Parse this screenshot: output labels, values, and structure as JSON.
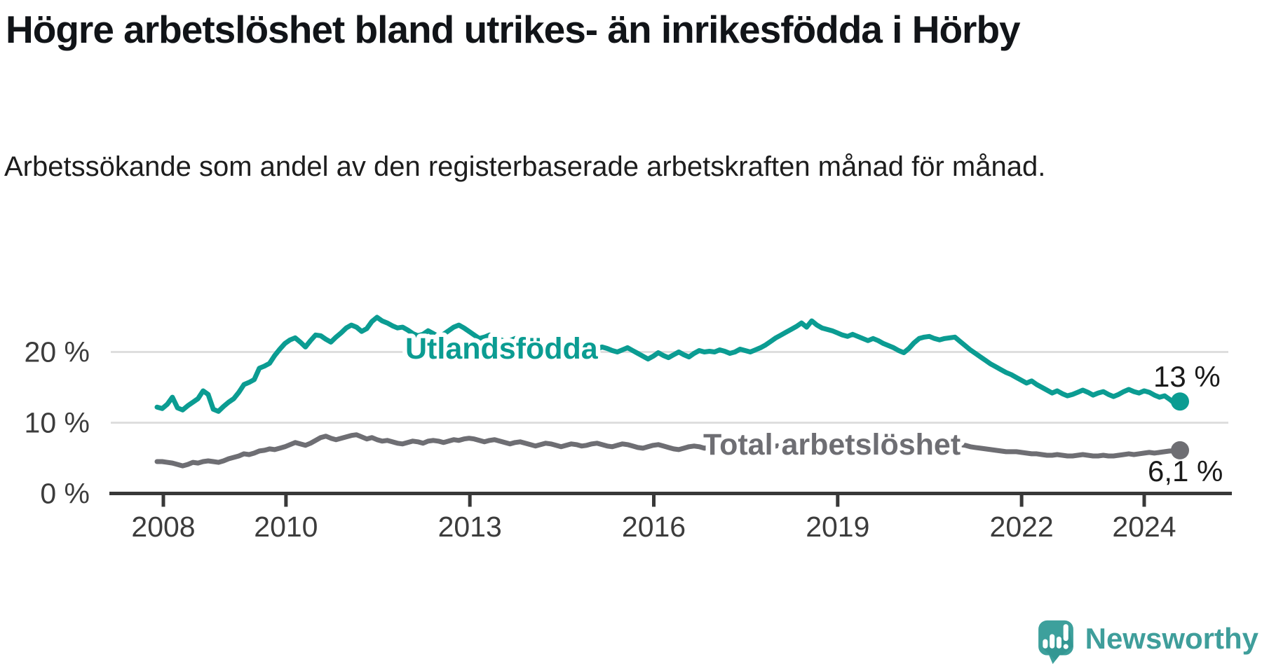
{
  "title": "Högre arbetslöshet bland utrikes- än inrikesfödda i Hörby",
  "subtitle": "Arbetssökande som andel av den registerbaserade arbetskraften månad för månad.",
  "branding": {
    "logo_text": "Newsworthy"
  },
  "colors": {
    "teal": "#0b9c92",
    "gray": "#6e6e73",
    "grid": "#dedede",
    "axis": "#383838",
    "tick_label": "#3c3c3c",
    "value_label": "#1a1a1a",
    "logo_teal": "#3f9e9b",
    "logo_icon": "#3da09c"
  },
  "chart_data": {
    "type": "line",
    "unit": "%",
    "x_start": "2008-01",
    "x_end": "2024-09",
    "x_tick_years": [
      2008,
      2010,
      2013,
      2016,
      2019,
      2022,
      2024
    ],
    "y_ticks": [
      {
        "value": 0,
        "label": "0 %"
      },
      {
        "value": 10,
        "label": "10 %"
      },
      {
        "value": 20,
        "label": "20 %"
      }
    ],
    "ylim": [
      0,
      27
    ],
    "grid_values": [
      10,
      20
    ],
    "grid_on": true,
    "legend_position": "inline-labels-on-lines",
    "series": [
      {
        "name": "Utlandsfödda",
        "color": "#0b9c92",
        "end_label": "13 %",
        "end_value": 13.0,
        "values": [
          12.2,
          12.0,
          12.6,
          13.6,
          12.1,
          11.8,
          12.4,
          12.9,
          13.4,
          14.5,
          14.0,
          11.9,
          11.6,
          12.3,
          12.9,
          13.4,
          14.3,
          15.4,
          15.7,
          16.1,
          17.7,
          18.0,
          18.4,
          19.5,
          20.4,
          21.2,
          21.7,
          22.0,
          21.4,
          20.7,
          21.6,
          22.4,
          22.3,
          21.8,
          21.4,
          22.1,
          22.7,
          23.4,
          23.8,
          23.5,
          22.9,
          23.3,
          24.3,
          24.9,
          24.4,
          24.1,
          23.7,
          23.4,
          23.5,
          23.1,
          22.6,
          22.3,
          22.5,
          23.0,
          22.6,
          22.2,
          22.5,
          23.0,
          23.5,
          23.8,
          23.4,
          22.9,
          22.4,
          21.9,
          22.1,
          22.4,
          22.2,
          21.8,
          21.5,
          21.6,
          21.9,
          21.7,
          21.4,
          21.0,
          20.7,
          20.9,
          21.2,
          21.0,
          20.7,
          20.4,
          20.2,
          20.5,
          20.8,
          20.6,
          20.3,
          20.1,
          20.4,
          20.7,
          20.5,
          20.2,
          20.0,
          20.3,
          20.6,
          20.2,
          19.8,
          19.4,
          19.0,
          19.4,
          19.9,
          19.5,
          19.2,
          19.6,
          20.0,
          19.6,
          19.3,
          19.8,
          20.2,
          20.0,
          20.1,
          20.0,
          20.3,
          20.1,
          19.8,
          20.0,
          20.4,
          20.2,
          20.0,
          20.3,
          20.6,
          21.0,
          21.5,
          22.0,
          22.4,
          22.8,
          23.2,
          23.6,
          24.1,
          23.5,
          24.4,
          23.8,
          23.4,
          23.2,
          23.0,
          22.7,
          22.4,
          22.2,
          22.5,
          22.2,
          21.9,
          21.6,
          21.9,
          21.6,
          21.2,
          20.9,
          20.6,
          20.2,
          19.9,
          20.5,
          21.3,
          21.9,
          22.1,
          22.2,
          21.9,
          21.7,
          21.9,
          22.0,
          22.1,
          21.5,
          20.9,
          20.3,
          19.8,
          19.3,
          18.8,
          18.3,
          17.9,
          17.5,
          17.1,
          16.8,
          16.4,
          16.0,
          15.6,
          15.9,
          15.4,
          15.0,
          14.6,
          14.2,
          14.5,
          14.1,
          13.8,
          14.0,
          14.3,
          14.6,
          14.3,
          13.9,
          14.2,
          14.4,
          14.0,
          13.7,
          14.0,
          14.4,
          14.7,
          14.4,
          14.2,
          14.5,
          14.3,
          13.9,
          13.6,
          13.8,
          13.3,
          12.7,
          13.0
        ]
      },
      {
        "name": "Total arbetslöshet",
        "color": "#6e6e73",
        "end_label": "6,1 %",
        "end_value": 6.1,
        "values": [
          4.5,
          4.5,
          4.4,
          4.3,
          4.1,
          3.9,
          4.1,
          4.4,
          4.3,
          4.5,
          4.6,
          4.5,
          4.4,
          4.6,
          4.9,
          5.1,
          5.3,
          5.6,
          5.5,
          5.7,
          6.0,
          6.1,
          6.3,
          6.2,
          6.4,
          6.6,
          6.9,
          7.2,
          7.0,
          6.8,
          7.1,
          7.5,
          7.9,
          8.1,
          7.8,
          7.6,
          7.8,
          8.0,
          8.2,
          8.3,
          8.0,
          7.7,
          7.9,
          7.6,
          7.4,
          7.5,
          7.3,
          7.1,
          7.0,
          7.2,
          7.4,
          7.3,
          7.1,
          7.4,
          7.5,
          7.4,
          7.2,
          7.4,
          7.6,
          7.5,
          7.7,
          7.8,
          7.7,
          7.5,
          7.3,
          7.5,
          7.6,
          7.4,
          7.2,
          7.0,
          7.2,
          7.3,
          7.1,
          6.9,
          6.7,
          6.9,
          7.1,
          7.0,
          6.8,
          6.6,
          6.8,
          7.0,
          6.9,
          6.7,
          6.8,
          7.0,
          7.1,
          6.9,
          6.7,
          6.6,
          6.8,
          7.0,
          6.9,
          6.7,
          6.5,
          6.4,
          6.6,
          6.8,
          6.9,
          6.7,
          6.5,
          6.3,
          6.2,
          6.4,
          6.6,
          6.7,
          6.6,
          6.4,
          6.5,
          6.6,
          6.8,
          6.7,
          6.5,
          6.7,
          6.8,
          6.6,
          6.5,
          6.3,
          6.2,
          6.4,
          6.5,
          6.7,
          6.8,
          6.9,
          7.0,
          7.1,
          7.0,
          7.2,
          7.1,
          7.3,
          7.1,
          7.0,
          6.9,
          6.8,
          6.7,
          6.6,
          6.7,
          6.6,
          6.5,
          6.4,
          6.5,
          6.4,
          6.3,
          6.2,
          6.3,
          6.5,
          6.9,
          7.3,
          7.5,
          7.4,
          7.3,
          7.2,
          7.1,
          7.0,
          6.9,
          6.9,
          7.0,
          6.9,
          6.8,
          6.6,
          6.5,
          6.4,
          6.3,
          6.2,
          6.1,
          6.0,
          5.9,
          5.9,
          5.9,
          5.8,
          5.7,
          5.6,
          5.6,
          5.5,
          5.4,
          5.4,
          5.5,
          5.4,
          5.3,
          5.3,
          5.4,
          5.5,
          5.4,
          5.3,
          5.3,
          5.4,
          5.3,
          5.3,
          5.4,
          5.5,
          5.6,
          5.5,
          5.6,
          5.7,
          5.8,
          5.7,
          5.8,
          5.9,
          6.0,
          6.0,
          6.1
        ]
      }
    ]
  }
}
